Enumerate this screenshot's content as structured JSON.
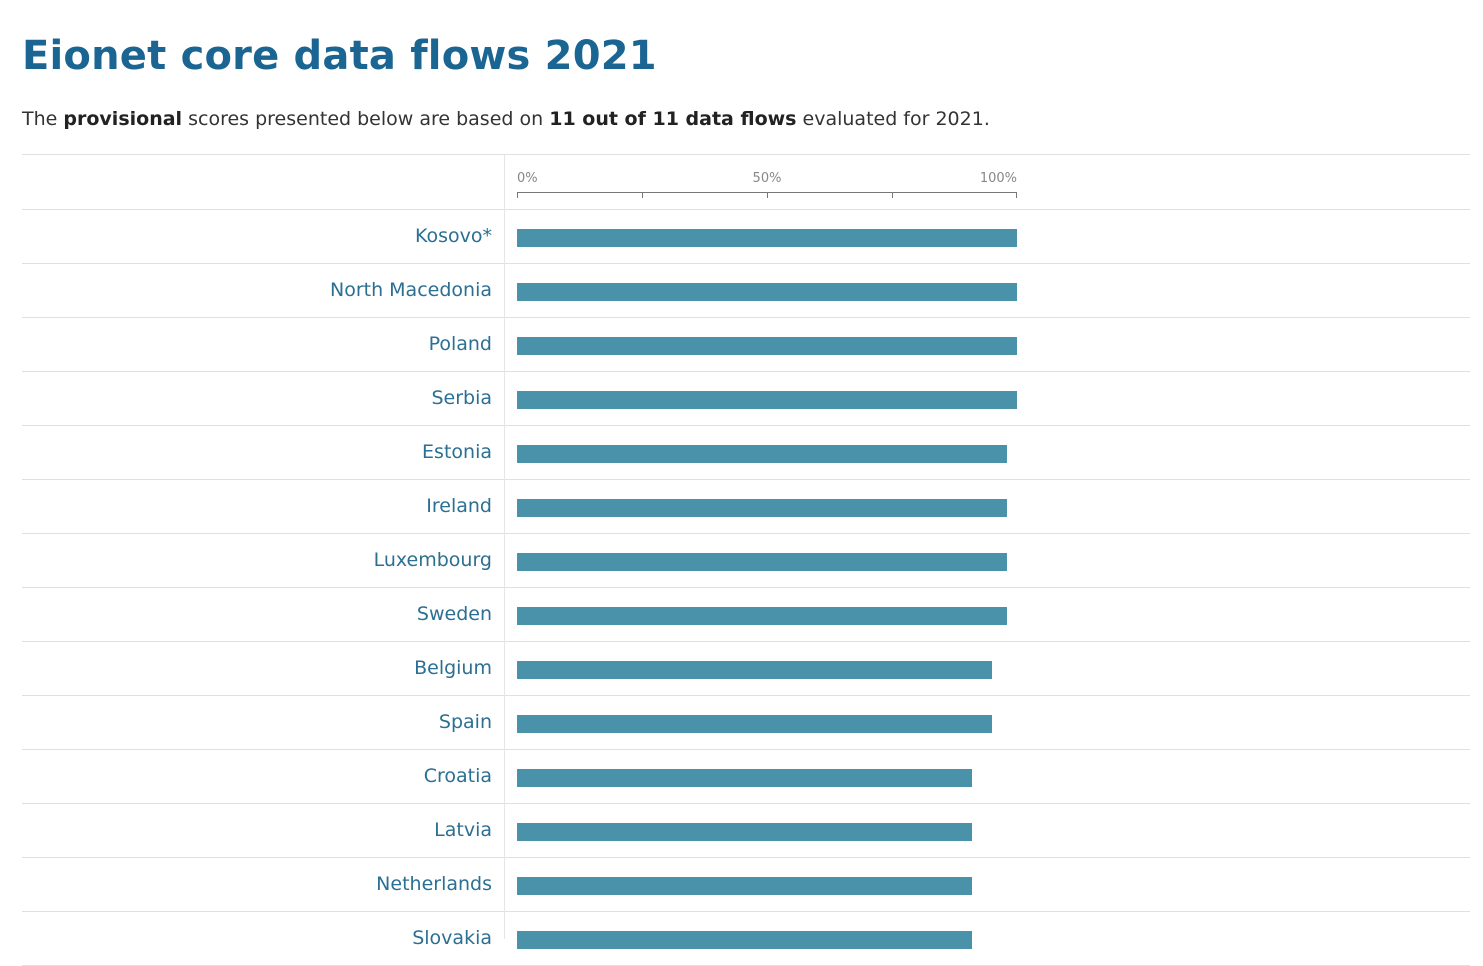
{
  "header": {
    "title": "Eionet core data flows 2021",
    "intro_prefix": "The ",
    "intro_bold_1": "provisional",
    "intro_middle": " scores presented below are based on ",
    "intro_bold_2": "11 out of 11 data flows",
    "intro_suffix": " evaluated for 2021."
  },
  "chart_data": {
    "type": "bar",
    "orientation": "horizontal",
    "title": "",
    "xlabel": "",
    "ylabel": "",
    "xlim": [
      0,
      100
    ],
    "grid": false,
    "bar_color": "#4a92a9",
    "label_color": "#2b6f93",
    "x_ticks": [
      0,
      25,
      50,
      75,
      100
    ],
    "x_tick_labels": [
      {
        "value": 0,
        "label": "0%"
      },
      {
        "value": 50,
        "label": "50%"
      },
      {
        "value": 100,
        "label": "100%"
      }
    ],
    "categories": [
      "Kosovo*",
      "North Macedonia",
      "Poland",
      "Serbia",
      "Estonia",
      "Ireland",
      "Luxembourg",
      "Sweden",
      "Belgium",
      "Spain",
      "Croatia",
      "Latvia",
      "Netherlands",
      "Slovakia"
    ],
    "values": [
      100,
      100,
      100,
      100,
      98,
      98,
      98,
      98,
      95,
      95,
      91,
      91,
      91,
      91
    ]
  }
}
